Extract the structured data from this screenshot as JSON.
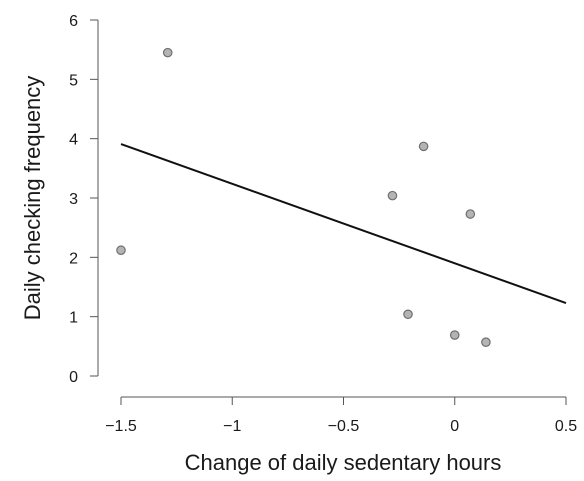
{
  "chart_data": {
    "type": "scatter",
    "title": "",
    "xlabel": "Change of daily sedentary hours",
    "ylabel": "Daily checking frequency",
    "xlim": [
      -1.5,
      0.5
    ],
    "ylim": [
      0,
      6
    ],
    "x_ticks": [
      -1.5,
      -1,
      -0.5,
      0,
      0.5
    ],
    "x_tick_labels": [
      "−1.5",
      "−1",
      "−0.5",
      "0",
      "0.5"
    ],
    "y_ticks": [
      0,
      1,
      2,
      3,
      4,
      5,
      6
    ],
    "y_tick_labels": [
      "0",
      "1",
      "2",
      "3",
      "4",
      "5",
      "6"
    ],
    "grid": false,
    "points": [
      {
        "x": -1.5,
        "y": 2.12
      },
      {
        "x": -1.29,
        "y": 5.45
      },
      {
        "x": -0.28,
        "y": 3.04
      },
      {
        "x": -0.14,
        "y": 3.87
      },
      {
        "x": -0.21,
        "y": 1.04
      },
      {
        "x": 0.07,
        "y": 2.73
      },
      {
        "x": 0.0,
        "y": 0.69
      },
      {
        "x": 0.14,
        "y": 0.57
      }
    ],
    "trend_line": {
      "x": [
        -1.5,
        0.5
      ],
      "y": [
        3.91,
        1.23
      ]
    },
    "colors": {
      "point_fill": "#b4b4b4",
      "point_stroke": "#6f6f6f",
      "line": "#111111",
      "axis": "#555555"
    }
  }
}
